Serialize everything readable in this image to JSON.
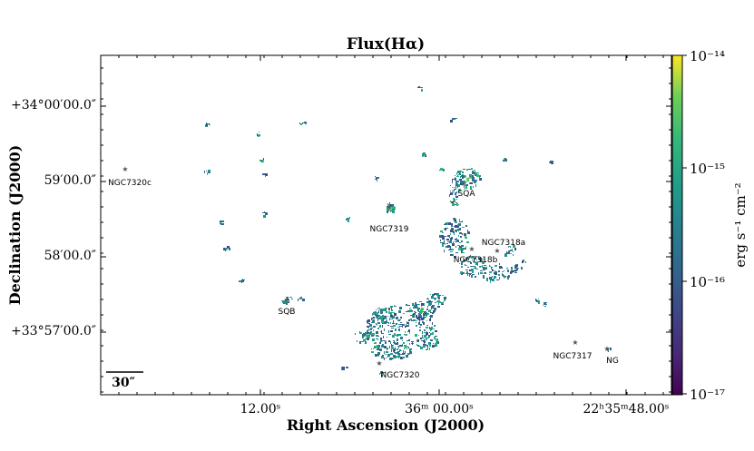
{
  "chart_data": {
    "type": "heatmap",
    "title": "Flux(Hα)",
    "xlabel": "Right Ascension (J2000)",
    "ylabel": "Declination (J2000)",
    "x_ticks": [
      "12.00ˢ",
      "36ᵐ 00.00ˢ",
      "22ʰ35ᵐ48.00ˢ"
    ],
    "y_ticks": [
      "+34°00′00.0″",
      "59′00.0″",
      "58′00.0″",
      "+33°57′00.0″"
    ],
    "colorbar": {
      "label": "erg s⁻¹ cm⁻²",
      "scale": "log",
      "ticks": [
        "10⁻¹⁴",
        "10⁻¹⁵",
        "10⁻¹⁶",
        "10⁻¹⁷"
      ],
      "range": [
        1e-17,
        1e-14
      ],
      "colormap": "viridis"
    },
    "scalebar_label": "30″",
    "galaxies": [
      {
        "name": "NGC7320c"
      },
      {
        "name": "NGC7319"
      },
      {
        "name": "SQA"
      },
      {
        "name": "NGC7318a"
      },
      {
        "name": "NGC7318b"
      },
      {
        "name": "SQB"
      },
      {
        "name": "NGC7320"
      },
      {
        "name": "NGC7317"
      },
      {
        "name": "NG"
      }
    ]
  }
}
